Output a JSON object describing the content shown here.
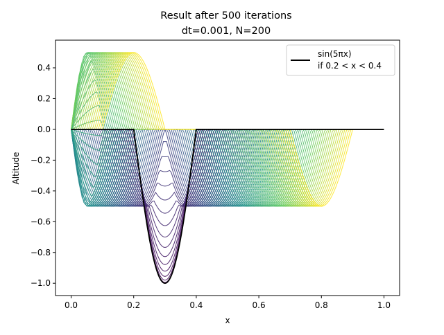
{
  "chart_data": {
    "type": "line",
    "title_line1": "Result after 500 iterations",
    "title_line2": "dt=0.001, N=200",
    "xlabel": "x",
    "ylabel": "Altitude",
    "xlim": [
      -0.05,
      1.05
    ],
    "ylim": [
      -1.08,
      0.58
    ],
    "x_ticks": [
      0.0,
      0.2,
      0.4,
      0.6,
      0.8,
      1.0
    ],
    "x_tick_labels": [
      "0.0",
      "0.2",
      "0.4",
      "0.6",
      "0.8",
      "1.0"
    ],
    "y_ticks": [
      0.4,
      0.2,
      0.0,
      -0.2,
      -0.4,
      -0.6,
      -0.8,
      -1.0
    ],
    "y_tick_labels": [
      "0.4",
      "0.2",
      "0.0",
      "−0.2",
      "−0.4",
      "−0.6",
      "−0.8",
      "−1.0"
    ],
    "grid": false,
    "legend": {
      "position": "top-right",
      "line1": "sin(5πx)",
      "line2": "if 0.2 < x < 0.4",
      "color": "#000000"
    },
    "initial_condition": {
      "formula": "sin(5*pi*x) if 0.2 < x < 0.4 else 0",
      "x_range": [
        0.0,
        1.0
      ],
      "color": "#000000"
    },
    "iterations": {
      "count": 500,
      "dt": 0.001,
      "N": 200,
      "colormap": "viridis",
      "colormap_stops": [
        "#440154",
        "#3b528b",
        "#21918c",
        "#5ec962",
        "#fde725"
      ],
      "pulse_amplitude": -0.5,
      "left_pulse_center_start": 0.3,
      "left_pulse_center_end": -0.2,
      "right_pulse_center_start": 0.3,
      "right_pulse_center_end": 0.8,
      "reflection_boundary": 0.0
    }
  }
}
